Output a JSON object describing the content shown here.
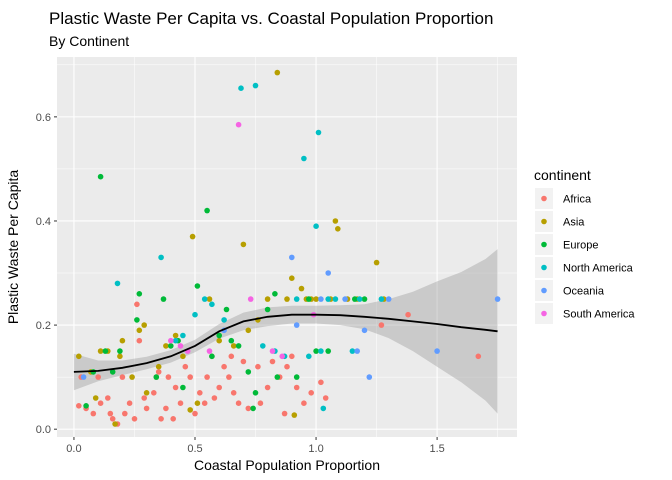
{
  "chart_data": {
    "type": "scatter",
    "title": "Plastic Waste Per Capita vs. Coastal Population Proportion",
    "subtitle": "By Continent",
    "xlabel": "Coastal Population Proportion",
    "ylabel": "Plastic Waste Per Capita",
    "xlim": [
      -0.07,
      1.83
    ],
    "ylim": [
      -0.015,
      0.715
    ],
    "x_ticks": [
      0.0,
      0.5,
      1.0,
      1.5
    ],
    "x_tick_labels": [
      "0.0",
      "0.5",
      "1.0",
      "1.5"
    ],
    "y_ticks": [
      0.0,
      0.2,
      0.4,
      0.6
    ],
    "y_tick_labels": [
      "0.0",
      "0.2",
      "0.4",
      "0.6"
    ],
    "grid": true,
    "legend_title": "continent",
    "legend_position": "right",
    "series": [
      {
        "name": "Africa",
        "color": "#F8766D",
        "points": [
          [
            0.02,
            0.045
          ],
          [
            0.03,
            0.1
          ],
          [
            0.05,
            0.04
          ],
          [
            0.08,
            0.03
          ],
          [
            0.1,
            0.1
          ],
          [
            0.11,
            0.05
          ],
          [
            0.14,
            0.06
          ],
          [
            0.15,
            0.03
          ],
          [
            0.16,
            0.02
          ],
          [
            0.18,
            0.01
          ],
          [
            0.2,
            0.1
          ],
          [
            0.21,
            0.03
          ],
          [
            0.23,
            0.05
          ],
          [
            0.25,
            0.02
          ],
          [
            0.26,
            0.24
          ],
          [
            0.27,
            0.17
          ],
          [
            0.29,
            0.06
          ],
          [
            0.3,
            0.04
          ],
          [
            0.33,
            0.07
          ],
          [
            0.34,
            0.1
          ],
          [
            0.35,
            0.11
          ],
          [
            0.36,
            0.02
          ],
          [
            0.38,
            0.04
          ],
          [
            0.39,
            0.1
          ],
          [
            0.41,
            0.02
          ],
          [
            0.42,
            0.08
          ],
          [
            0.44,
            0.05
          ],
          [
            0.46,
            0.12
          ],
          [
            0.48,
            0.1
          ],
          [
            0.5,
            0.03
          ],
          [
            0.52,
            0.07
          ],
          [
            0.54,
            0.05
          ],
          [
            0.55,
            0.1
          ],
          [
            0.57,
            0.14
          ],
          [
            0.58,
            0.06
          ],
          [
            0.6,
            0.08
          ],
          [
            0.62,
            0.12
          ],
          [
            0.64,
            0.1
          ],
          [
            0.65,
            0.14
          ],
          [
            0.66,
            0.07
          ],
          [
            0.68,
            0.05
          ],
          [
            0.7,
            0.13
          ],
          [
            0.72,
            0.04
          ],
          [
            0.76,
            0.12
          ],
          [
            0.77,
            0.05
          ],
          [
            0.8,
            0.08
          ],
          [
            0.82,
            0.13
          ],
          [
            0.85,
            0.1
          ],
          [
            0.87,
            0.03
          ],
          [
            0.88,
            0.12
          ],
          [
            0.9,
            0.14
          ],
          [
            0.92,
            0.08
          ],
          [
            0.95,
            0.05
          ],
          [
            0.98,
            0.07
          ],
          [
            1.02,
            0.09
          ],
          [
            1.04,
            0.06
          ],
          [
            1.27,
            0.2
          ],
          [
            1.38,
            0.22
          ],
          [
            1.67,
            0.14
          ]
        ]
      },
      {
        "name": "Asia",
        "color": "#B79F00",
        "points": [
          [
            0.02,
            0.14
          ],
          [
            0.07,
            0.11
          ],
          [
            0.09,
            0.06
          ],
          [
            0.11,
            0.15
          ],
          [
            0.14,
            0.15
          ],
          [
            0.17,
            0.01
          ],
          [
            0.19,
            0.14
          ],
          [
            0.2,
            0.17
          ],
          [
            0.24,
            0.1
          ],
          [
            0.27,
            0.19
          ],
          [
            0.29,
            0.2
          ],
          [
            0.3,
            0.07
          ],
          [
            0.35,
            0.12
          ],
          [
            0.38,
            0.16
          ],
          [
            0.42,
            0.18
          ],
          [
            0.45,
            0.14
          ],
          [
            0.48,
            0.037
          ],
          [
            0.49,
            0.37
          ],
          [
            0.51,
            0.05
          ],
          [
            0.56,
            0.25
          ],
          [
            0.6,
            0.17
          ],
          [
            0.66,
            0.16
          ],
          [
            0.7,
            0.355
          ],
          [
            0.72,
            0.19
          ],
          [
            0.76,
            0.21
          ],
          [
            0.8,
            0.25
          ],
          [
            0.84,
            0.685
          ],
          [
            0.88,
            0.25
          ],
          [
            0.9,
            0.29
          ],
          [
            0.91,
            0.027
          ],
          [
            0.94,
            0.27
          ],
          [
            0.96,
            0.25
          ],
          [
            0.98,
            0.25
          ],
          [
            1.0,
            0.25
          ],
          [
            1.06,
            0.25
          ],
          [
            1.08,
            0.4
          ],
          [
            1.09,
            0.385
          ],
          [
            1.13,
            0.25
          ],
          [
            1.17,
            0.25
          ],
          [
            1.25,
            0.32
          ],
          [
            1.28,
            0.25
          ]
        ]
      },
      {
        "name": "Europe",
        "color": "#00BA38",
        "points": [
          [
            0.05,
            0.045
          ],
          [
            0.08,
            0.11
          ],
          [
            0.11,
            0.485
          ],
          [
            0.13,
            0.15
          ],
          [
            0.16,
            0.11
          ],
          [
            0.19,
            0.15
          ],
          [
            0.26,
            0.21
          ],
          [
            0.27,
            0.26
          ],
          [
            0.34,
            0.1
          ],
          [
            0.37,
            0.25
          ],
          [
            0.4,
            0.16
          ],
          [
            0.43,
            0.17
          ],
          [
            0.45,
            0.08
          ],
          [
            0.51,
            0.275
          ],
          [
            0.55,
            0.42
          ],
          [
            0.57,
            0.14
          ],
          [
            0.6,
            0.18
          ],
          [
            0.63,
            0.23
          ],
          [
            0.65,
            0.17
          ],
          [
            0.68,
            0.16
          ],
          [
            0.72,
            0.11
          ],
          [
            0.74,
            0.04
          ],
          [
            0.75,
            0.07
          ],
          [
            0.8,
            0.23
          ],
          [
            0.83,
            0.26
          ],
          [
            0.84,
            0.1
          ],
          [
            0.92,
            0.1
          ],
          [
            0.97,
            0.25
          ],
          [
            1.0,
            0.15
          ],
          [
            1.05,
            0.15
          ],
          [
            1.16,
            0.25
          ],
          [
            1.2,
            0.25
          ]
        ]
      },
      {
        "name": "North America",
        "color": "#00BFC4",
        "points": [
          [
            0.18,
            0.28
          ],
          [
            0.36,
            0.33
          ],
          [
            0.42,
            0.17
          ],
          [
            0.45,
            0.18
          ],
          [
            0.5,
            0.22
          ],
          [
            0.54,
            0.25
          ],
          [
            0.57,
            0.24
          ],
          [
            0.62,
            0.21
          ],
          [
            0.69,
            0.655
          ],
          [
            0.75,
            0.66
          ],
          [
            0.78,
            0.16
          ],
          [
            0.83,
            0.15
          ],
          [
            0.87,
            0.14
          ],
          [
            0.92,
            0.25
          ],
          [
            0.95,
            0.52
          ],
          [
            0.97,
            0.14
          ],
          [
            1.0,
            0.39
          ],
          [
            1.01,
            0.57
          ],
          [
            1.02,
            0.15
          ],
          [
            1.03,
            0.04
          ],
          [
            1.05,
            0.25
          ],
          [
            1.08,
            0.25
          ],
          [
            1.15,
            0.15
          ],
          [
            1.18,
            0.25
          ],
          [
            1.27,
            0.25
          ]
        ]
      },
      {
        "name": "Oceania",
        "color": "#619CFF",
        "points": [
          [
            0.04,
            0.1
          ],
          [
            0.62,
            0.19
          ],
          [
            0.9,
            0.33
          ],
          [
            0.92,
            0.2
          ],
          [
            1.02,
            0.25
          ],
          [
            1.05,
            0.3
          ],
          [
            1.12,
            0.25
          ],
          [
            1.17,
            0.15
          ],
          [
            1.2,
            0.19
          ],
          [
            1.22,
            0.1
          ],
          [
            1.3,
            0.25
          ],
          [
            1.5,
            0.15
          ],
          [
            1.75,
            0.25
          ]
        ]
      },
      {
        "name": "South America",
        "color": "#F564E3",
        "points": [
          [
            0.4,
            0.17
          ],
          [
            0.44,
            0.16
          ],
          [
            0.47,
            0.15
          ],
          [
            0.56,
            0.15
          ],
          [
            0.68,
            0.585
          ],
          [
            0.73,
            0.25
          ],
          [
            0.82,
            0.15
          ],
          [
            0.86,
            0.14
          ],
          [
            0.99,
            0.22
          ]
        ]
      }
    ],
    "smooth": {
      "x": [
        0.0,
        0.1,
        0.2,
        0.3,
        0.4,
        0.5,
        0.6,
        0.7,
        0.8,
        0.9,
        1.0,
        1.1,
        1.2,
        1.3,
        1.4,
        1.5,
        1.6,
        1.7,
        1.75
      ],
      "y": [
        0.11,
        0.112,
        0.118,
        0.127,
        0.14,
        0.16,
        0.188,
        0.207,
        0.216,
        0.22,
        0.22,
        0.219,
        0.216,
        0.212,
        0.207,
        0.202,
        0.196,
        0.191,
        0.188
      ],
      "ci_lower": [
        0.075,
        0.092,
        0.104,
        0.115,
        0.128,
        0.148,
        0.174,
        0.19,
        0.198,
        0.203,
        0.203,
        0.2,
        0.192,
        0.175,
        0.15,
        0.12,
        0.09,
        0.055,
        0.03
      ],
      "ci_upper": [
        0.145,
        0.132,
        0.132,
        0.139,
        0.152,
        0.172,
        0.202,
        0.224,
        0.234,
        0.237,
        0.237,
        0.238,
        0.24,
        0.25,
        0.264,
        0.284,
        0.302,
        0.327,
        0.346
      ],
      "line_color": "#000000",
      "band_color": "#999999"
    }
  }
}
